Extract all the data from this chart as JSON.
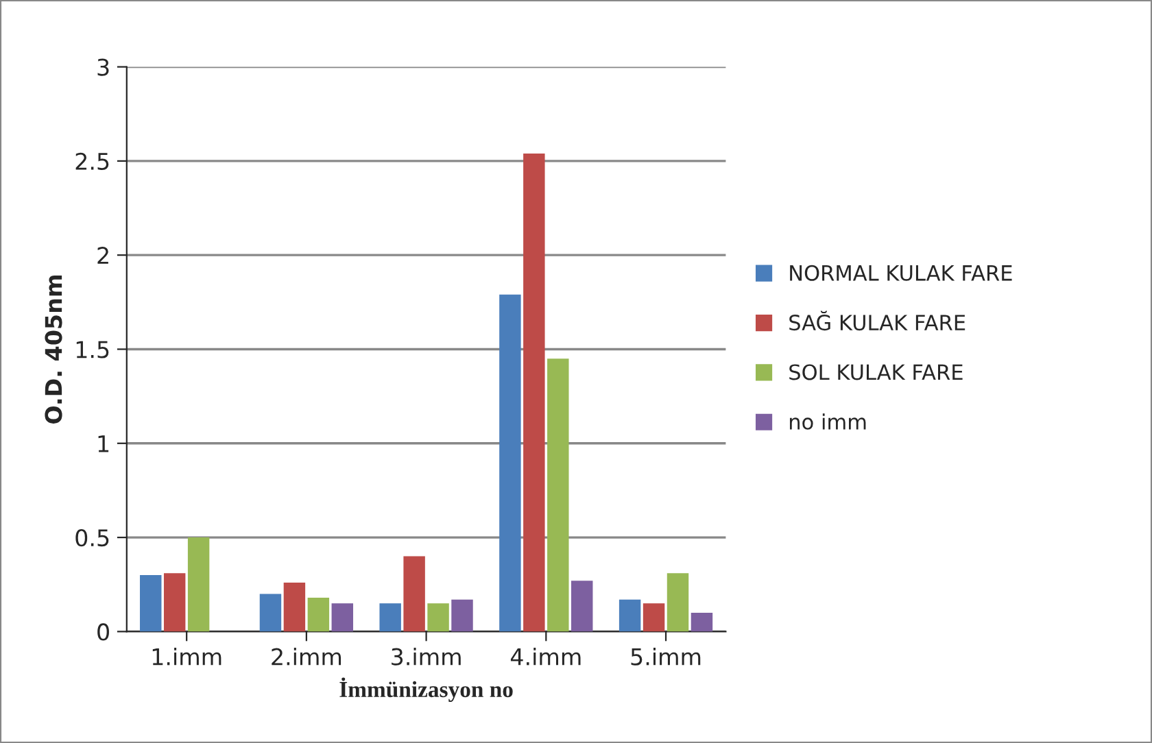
{
  "chart_data": {
    "type": "bar",
    "xlabel": "İmmünizasyon no",
    "ylabel": "O.D. 405nm",
    "categories": [
      "1.imm",
      "2.imm",
      "3.imm",
      "4.imm",
      "5.imm"
    ],
    "series": [
      {
        "name": "NORMAL KULAK FARE",
        "color": "#4a7ebb",
        "values": [
          0.3,
          0.2,
          0.15,
          1.79,
          0.17
        ]
      },
      {
        "name": "SAĞ KULAK FARE",
        "color": "#be4b48",
        "values": [
          0.31,
          0.26,
          0.4,
          2.54,
          0.15
        ]
      },
      {
        "name": "SOL KULAK FARE",
        "color": "#98b954",
        "values": [
          0.5,
          0.18,
          0.15,
          1.45,
          0.31
        ]
      },
      {
        "name": "no imm",
        "color": "#7d60a0",
        "values": [
          null,
          0.15,
          0.17,
          0.27,
          0.1
        ]
      }
    ],
    "ylim": [
      0,
      3
    ],
    "yticks": [
      0,
      0.5,
      1,
      1.5,
      2,
      2.5,
      3
    ],
    "grid": "y",
    "legend": "right"
  }
}
